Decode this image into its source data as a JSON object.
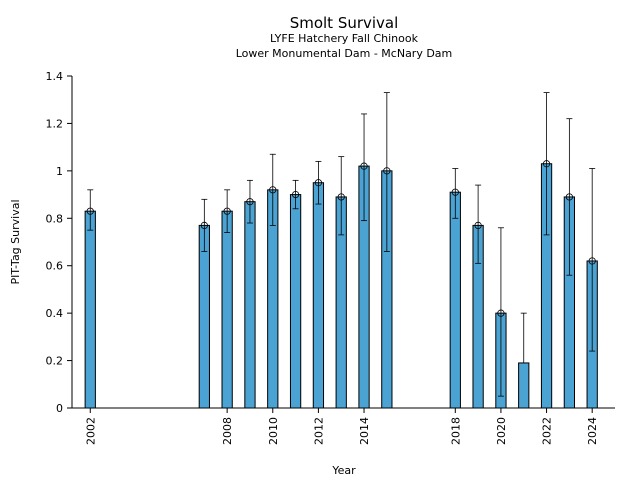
{
  "chart_data": {
    "type": "bar",
    "title": "Smolt Survival",
    "subtitle_lines": [
      "LYFE Hatchery Fall Chinook",
      "Lower Monumental Dam - McNary Dam"
    ],
    "xlabel": "Year",
    "ylabel": "PIT-Tag Survival",
    "xlim": [
      2001.2,
      2025
    ],
    "ylim": [
      0,
      1.4
    ],
    "yticks": [
      0,
      0.2,
      0.4,
      0.6,
      0.8,
      1,
      1.2,
      1.4
    ],
    "ytick_labels": [
      "0",
      "0.2",
      "0.4",
      "0.6",
      "0.8",
      "1",
      "1.2",
      "1.4"
    ],
    "xticks": [
      2002,
      2008,
      2010,
      2012,
      2014,
      2018,
      2020,
      2022,
      2024
    ],
    "xtick_labels": [
      "2002",
      "2008",
      "2010",
      "2012",
      "2014",
      "2018",
      "2020",
      "2022",
      "2024"
    ],
    "bar_color": "#4ba3d4",
    "grid": false,
    "legend": "none",
    "points": [
      {
        "year": 2002,
        "value": 0.83,
        "lower": 0.75,
        "upper": 0.92,
        "marker": true
      },
      {
        "year": 2007,
        "value": 0.77,
        "lower": 0.66,
        "upper": 0.88,
        "marker": true
      },
      {
        "year": 2008,
        "value": 0.83,
        "lower": 0.74,
        "upper": 0.92,
        "marker": true
      },
      {
        "year": 2009,
        "value": 0.87,
        "lower": 0.78,
        "upper": 0.96,
        "marker": true
      },
      {
        "year": 2010,
        "value": 0.92,
        "lower": 0.77,
        "upper": 1.07,
        "marker": true
      },
      {
        "year": 2011,
        "value": 0.9,
        "lower": 0.84,
        "upper": 0.96,
        "marker": true
      },
      {
        "year": 2012,
        "value": 0.95,
        "lower": 0.86,
        "upper": 1.04,
        "marker": true
      },
      {
        "year": 2013,
        "value": 0.89,
        "lower": 0.73,
        "upper": 1.06,
        "marker": true
      },
      {
        "year": 2014,
        "value": 1.02,
        "lower": 0.79,
        "upper": 1.24,
        "marker": true
      },
      {
        "year": 2015,
        "value": 1.0,
        "lower": 0.66,
        "upper": 1.33,
        "marker": true
      },
      {
        "year": 2018,
        "value": 0.91,
        "lower": 0.8,
        "upper": 1.01,
        "marker": true
      },
      {
        "year": 2019,
        "value": 0.77,
        "lower": 0.61,
        "upper": 0.94,
        "marker": true
      },
      {
        "year": 2020,
        "value": 0.4,
        "lower": 0.05,
        "upper": 0.76,
        "marker": true
      },
      {
        "year": 2021,
        "value": 0.19,
        "lower": null,
        "upper": 0.4,
        "marker": false
      },
      {
        "year": 2022,
        "value": 1.03,
        "lower": 0.73,
        "upper": 1.33,
        "marker": true
      },
      {
        "year": 2023,
        "value": 0.89,
        "lower": 0.56,
        "upper": 1.22,
        "marker": true
      },
      {
        "year": 2024,
        "value": 0.62,
        "lower": 0.24,
        "upper": 1.01,
        "marker": true
      }
    ]
  }
}
